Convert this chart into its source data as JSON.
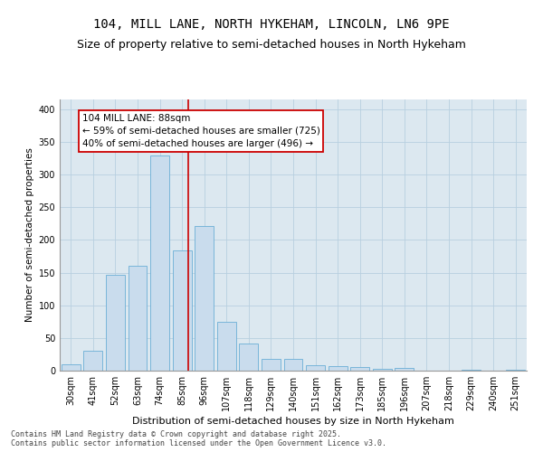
{
  "title_line1": "104, MILL LANE, NORTH HYKEHAM, LINCOLN, LN6 9PE",
  "title_line2": "Size of property relative to semi-detached houses in North Hykeham",
  "xlabel": "Distribution of semi-detached houses by size in North Hykeham",
  "ylabel": "Number of semi-detached properties",
  "categories": [
    "30sqm",
    "41sqm",
    "52sqm",
    "63sqm",
    "74sqm",
    "85sqm",
    "96sqm",
    "107sqm",
    "118sqm",
    "129sqm",
    "140sqm",
    "151sqm",
    "162sqm",
    "173sqm",
    "185sqm",
    "196sqm",
    "207sqm",
    "218sqm",
    "229sqm",
    "240sqm",
    "251sqm"
  ],
  "values": [
    10,
    31,
    147,
    160,
    329,
    184,
    221,
    75,
    42,
    18,
    18,
    8,
    7,
    5,
    3,
    4,
    0,
    0,
    1,
    0,
    1
  ],
  "bar_color": "#c9dced",
  "bar_edge_color": "#6aaed6",
  "subject_line_color": "#cc0000",
  "annotation_box_color": "#ffffff",
  "annotation_box_edge_color": "#cc0000",
  "subject_label": "104 MILL LANE: 88sqm",
  "annotation_line1": "← 59% of semi-detached houses are smaller (725)",
  "annotation_line2": "40% of semi-detached houses are larger (496) →",
  "grid_color": "#b8cfe0",
  "background_color": "#dce8f0",
  "ylim_max": 415,
  "yticks": [
    0,
    50,
    100,
    150,
    200,
    250,
    300,
    350,
    400
  ],
  "footer_line1": "Contains HM Land Registry data © Crown copyright and database right 2025.",
  "footer_line2": "Contains public sector information licensed under the Open Government Licence v3.0.",
  "title_fontsize": 10,
  "subtitle_fontsize": 9,
  "annot_fontsize": 7.5,
  "xlabel_fontsize": 8,
  "ylabel_fontsize": 7.5,
  "tick_fontsize": 7,
  "footer_fontsize": 6
}
